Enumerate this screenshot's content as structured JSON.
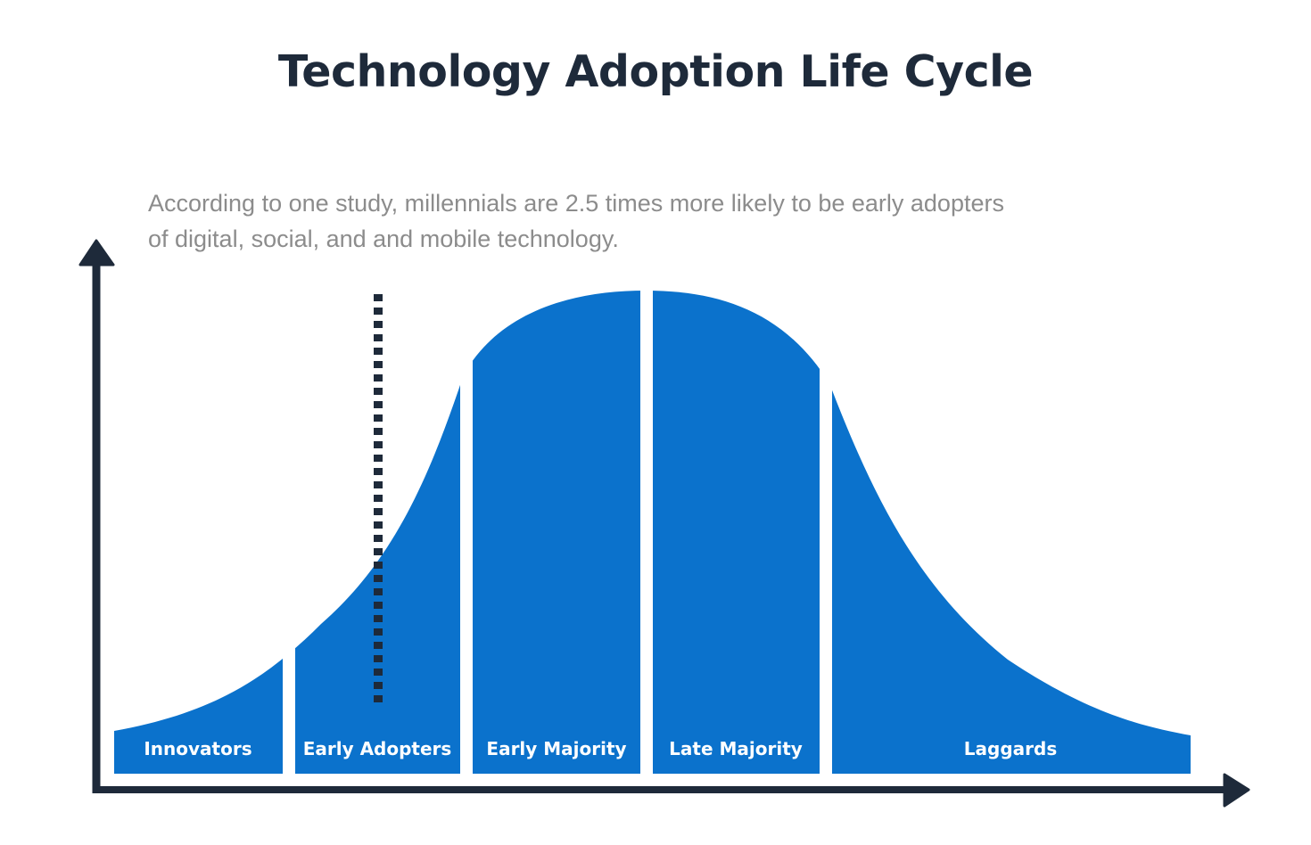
{
  "title": "Technology Adoption Life Cycle",
  "subtitle": "According to one study, millennials are 2.5 times more likely to be early adopters of digital, social, and and mobile technology.",
  "colors": {
    "curve_fill": "#0b72cc",
    "axis": "#1e2a3a",
    "title": "#1e2a3a",
    "subtitle": "#8c8c8c",
    "segment_label": "#ffffff"
  },
  "segments": [
    {
      "label": "Innovators"
    },
    {
      "label": "Early Adopters"
    },
    {
      "label": "Early Majority"
    },
    {
      "label": "Late Majority"
    },
    {
      "label": "Laggards"
    }
  ],
  "icons": {
    "y_axis_arrow": "arrow-up-icon",
    "x_axis_arrow": "arrow-right-icon"
  }
}
